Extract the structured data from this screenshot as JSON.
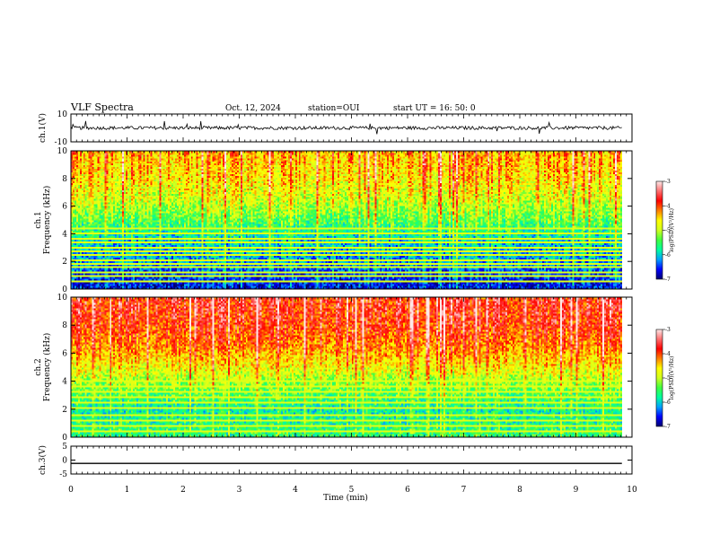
{
  "header": {
    "title": "VLF Spectra",
    "date": "Oct. 12, 2024",
    "station": "station=OUI",
    "start": "start  UT =   16: 50: 0"
  },
  "chart_data": {
    "type": "heatmap",
    "xlabel": "Time  (min)",
    "xlim": [
      0,
      10
    ],
    "x_ticks": [
      "0",
      "1",
      "2",
      "3",
      "4",
      "5",
      "6",
      "7",
      "8",
      "9",
      "10"
    ],
    "data_end_min": 9.82,
    "panels": [
      {
        "kind": "waveform",
        "ylabel": "ch.1(V)",
        "ylim": [
          -10,
          10
        ],
        "y_ticks": [
          "10",
          "-10"
        ],
        "baseline": 0,
        "noise_amplitude": 1.2,
        "spike_amplitude": 6
      },
      {
        "kind": "spectrogram",
        "ylabel": "ch.1\nFrequency  (kHz)",
        "ylim": [
          0,
          10
        ],
        "y_ticks": [
          "0",
          "2",
          "4",
          "6",
          "8",
          "10"
        ],
        "profile": [
          {
            "f": 0.5,
            "v": -6.6
          },
          {
            "f": 2,
            "v": -6.2
          },
          {
            "f": 3.5,
            "v": -6.0
          },
          {
            "f": 5,
            "v": -5.4
          },
          {
            "f": 6.5,
            "v": -4.9
          },
          {
            "f": 8,
            "v": -4.6
          },
          {
            "f": 9.8,
            "v": -4.4
          }
        ],
        "hum_lines_khz": [
          0.5,
          0.9,
          1.2,
          1.5,
          1.8,
          2.1,
          2.4,
          2.7,
          3.0,
          3.3,
          3.6,
          4.0,
          4.3
        ]
      },
      {
        "kind": "spectrogram",
        "ylabel": "ch.2\nFrequency  (kHz)",
        "ylim": [
          0,
          10
        ],
        "y_ticks": [
          "0",
          "2",
          "4",
          "6",
          "8",
          "10"
        ],
        "profile": [
          {
            "f": 0.5,
            "v": -5.6
          },
          {
            "f": 2,
            "v": -5.8
          },
          {
            "f": 3.5,
            "v": -5.3
          },
          {
            "f": 5,
            "v": -4.7
          },
          {
            "f": 6.5,
            "v": -4.2
          },
          {
            "f": 8,
            "v": -3.9
          },
          {
            "f": 9.8,
            "v": -3.8
          }
        ],
        "hum_lines_khz": [
          0.4,
          0.8,
          1.2,
          1.6,
          2.0,
          2.4,
          2.8,
          3.2,
          3.6,
          4.0
        ]
      },
      {
        "kind": "waveform",
        "ylabel": "ch.3(V)",
        "ylim": [
          -5,
          5
        ],
        "y_ticks": [
          "5",
          "0",
          "-5"
        ],
        "baseline": -1.2,
        "noise_amplitude": 0,
        "spike_amplitude": 0
      }
    ],
    "colorbar": {
      "label": "log(PSD)(V²/Hz)",
      "range": [
        -7,
        -3
      ],
      "ticks": [
        "-3",
        "-4",
        "-5",
        "-6",
        "-7"
      ],
      "colors": [
        "#000070",
        "#0000ff",
        "#00a0ff",
        "#00ffa0",
        "#40ff40",
        "#d0ff20",
        "#ffff00",
        "#ff8000",
        "#ff0000",
        "#ff7070",
        "#ffe8e8"
      ]
    }
  }
}
